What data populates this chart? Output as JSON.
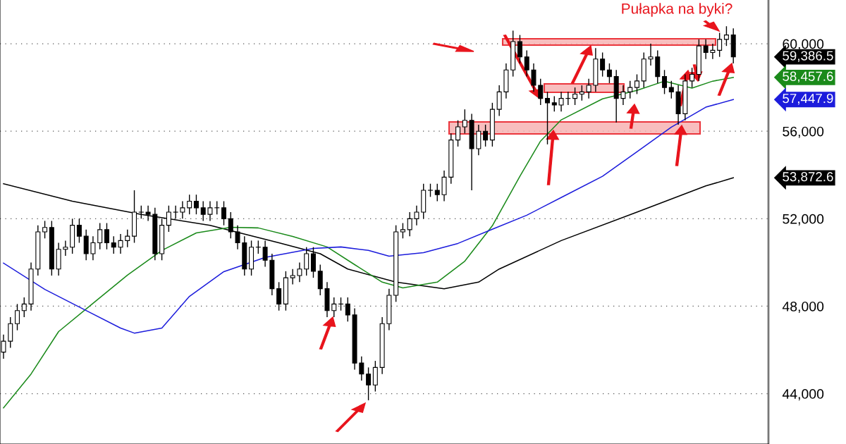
{
  "chart_data": {
    "type": "candlestick",
    "categories": [
      null,
      null,
      null,
      null,
      null,
      null,
      null,
      null,
      null,
      null,
      null,
      null,
      null,
      null,
      null,
      null,
      null,
      null,
      null,
      null,
      null,
      null,
      null,
      null,
      null,
      null,
      null,
      null,
      null,
      null,
      null,
      null,
      null,
      null,
      null,
      null,
      null,
      null,
      null,
      null,
      null,
      null,
      null,
      null,
      null,
      null,
      null,
      null,
      null,
      null,
      null,
      null,
      null,
      null,
      null,
      null,
      null,
      null,
      null,
      null,
      null,
      null,
      null,
      null,
      null,
      null,
      null,
      null,
      null,
      null,
      null,
      null,
      null,
      null,
      null,
      null,
      null,
      null,
      null,
      null,
      null,
      null,
      null,
      null,
      null,
      null,
      null,
      null,
      null,
      null,
      null,
      null,
      null,
      null,
      null,
      null,
      null,
      null,
      null,
      null,
      null,
      null,
      null,
      null,
      null,
      null,
      null
    ],
    "ohlc": [
      [
        45900,
        46700,
        45600,
        46400
      ],
      [
        46400,
        47500,
        46100,
        47200
      ],
      [
        47200,
        48100,
        46900,
        47800
      ],
      [
        47800,
        48400,
        47500,
        48100
      ],
      [
        48100,
        50000,
        47800,
        49700
      ],
      [
        49700,
        51700,
        49400,
        51400
      ],
      [
        51400,
        51900,
        51100,
        51600
      ],
      [
        51600,
        51900,
        49400,
        49700
      ],
      [
        49700,
        50900,
        49400,
        50600
      ],
      [
        50600,
        51000,
        50300,
        50700
      ],
      [
        50700,
        52000,
        50400,
        51700
      ],
      [
        51700,
        52000,
        50900,
        51200
      ],
      [
        51200,
        51500,
        50100,
        50400
      ],
      [
        50400,
        51200,
        50100,
        50900
      ],
      [
        50900,
        51800,
        50600,
        51500
      ],
      [
        51500,
        51800,
        50600,
        50900
      ],
      [
        50900,
        51200,
        50400,
        50700
      ],
      [
        50700,
        51300,
        50400,
        51000
      ],
      [
        51000,
        51500,
        50700,
        51200
      ],
      [
        51200,
        53300,
        50900,
        52300
      ],
      [
        52300,
        52600,
        52000,
        52300
      ],
      [
        52300,
        52600,
        51900,
        52200
      ],
      [
        52200,
        52500,
        50100,
        50400
      ],
      [
        50400,
        52000,
        50100,
        51700
      ],
      [
        51700,
        52600,
        51400,
        52300
      ],
      [
        52300,
        52600,
        52000,
        52300
      ],
      [
        52300,
        52800,
        52000,
        52500
      ],
      [
        52500,
        53100,
        52200,
        52800
      ],
      [
        52800,
        53100,
        52200,
        52500
      ],
      [
        52500,
        52800,
        51900,
        52200
      ],
      [
        52200,
        52800,
        51900,
        52500
      ],
      [
        52500,
        52800,
        52200,
        52500
      ],
      [
        52500,
        52800,
        51700,
        52000
      ],
      [
        52000,
        52300,
        51100,
        51400
      ],
      [
        51400,
        51700,
        50600,
        50900
      ],
      [
        50900,
        51200,
        49400,
        49700
      ],
      [
        49700,
        51000,
        49400,
        50700
      ],
      [
        50700,
        51000,
        50400,
        50700
      ],
      [
        50700,
        51000,
        49800,
        50100
      ],
      [
        50100,
        50400,
        48500,
        48800
      ],
      [
        48800,
        49100,
        47800,
        48100
      ],
      [
        48100,
        49600,
        47800,
        49300
      ],
      [
        49300,
        49700,
        49000,
        49400
      ],
      [
        49400,
        50000,
        49100,
        49700
      ],
      [
        49700,
        50700,
        49400,
        50400
      ],
      [
        50400,
        50700,
        49300,
        49600
      ],
      [
        49600,
        49900,
        48500,
        48800
      ],
      [
        48800,
        49100,
        47500,
        47800
      ],
      [
        47800,
        48400,
        47500,
        48100
      ],
      [
        48100,
        48400,
        47800,
        48100
      ],
      [
        48100,
        48400,
        47300,
        47600
      ],
      [
        47600,
        47900,
        45100,
        45400
      ],
      [
        45400,
        45700,
        44600,
        44900
      ],
      [
        44900,
        45200,
        43700,
        44400
      ],
      [
        44400,
        45500,
        44100,
        45200
      ],
      [
        45200,
        47500,
        44900,
        47200
      ],
      [
        47200,
        48800,
        46900,
        48500
      ],
      [
        48500,
        51700,
        48200,
        51400
      ],
      [
        51400,
        51800,
        51100,
        51500
      ],
      [
        51500,
        52300,
        51200,
        52000
      ],
      [
        52000,
        52600,
        51700,
        52300
      ],
      [
        52300,
        53600,
        52000,
        53300
      ],
      [
        53300,
        53600,
        53000,
        53300
      ],
      [
        53300,
        53600,
        52800,
        53100
      ],
      [
        53100,
        54200,
        52800,
        53900
      ],
      [
        53900,
        55900,
        53600,
        55600
      ],
      [
        55600,
        56500,
        55300,
        56200
      ],
      [
        56200,
        57000,
        55900,
        56500
      ],
      [
        56500,
        56800,
        53300,
        55200
      ],
      [
        55200,
        56300,
        54900,
        56000
      ],
      [
        56000,
        56300,
        55300,
        55600
      ],
      [
        55600,
        57300,
        55300,
        57000
      ],
      [
        57000,
        58100,
        56700,
        57800
      ],
      [
        57800,
        59100,
        57500,
        58800
      ],
      [
        58800,
        60600,
        58500,
        60100
      ],
      [
        60100,
        60400,
        59100,
        59400
      ],
      [
        59400,
        59700,
        58500,
        58800
      ],
      [
        58800,
        59100,
        57800,
        58100
      ],
      [
        58100,
        58400,
        57200,
        57500
      ],
      [
        57500,
        57800,
        55400,
        57300
      ],
      [
        57300,
        57600,
        56900,
        57200
      ],
      [
        57200,
        57800,
        56900,
        57500
      ],
      [
        57500,
        57800,
        57200,
        57500
      ],
      [
        57500,
        58000,
        57200,
        57700
      ],
      [
        57700,
        58100,
        57400,
        57800
      ],
      [
        57800,
        58400,
        57500,
        58100
      ],
      [
        58100,
        59800,
        57800,
        59300
      ],
      [
        59300,
        59600,
        58500,
        58800
      ],
      [
        58800,
        59100,
        58200,
        58500
      ],
      [
        58500,
        58800,
        56400,
        57500
      ],
      [
        57500,
        58100,
        57200,
        57800
      ],
      [
        57800,
        58300,
        57500,
        58000
      ],
      [
        58000,
        58600,
        57700,
        58300
      ],
      [
        58300,
        59600,
        58000,
        59300
      ],
      [
        59300,
        60000,
        59000,
        59400
      ],
      [
        59400,
        59700,
        58200,
        58500
      ],
      [
        58500,
        58800,
        57700,
        58000
      ],
      [
        58000,
        58300,
        57500,
        57800
      ],
      [
        57800,
        58100,
        56300,
        56800
      ],
      [
        56800,
        58600,
        56500,
        58300
      ],
      [
        58300,
        58900,
        58000,
        58600
      ],
      [
        58600,
        60200,
        58300,
        59900
      ],
      [
        59900,
        60200,
        59300,
        59600
      ],
      [
        59600,
        60000,
        59300,
        59700
      ],
      [
        59700,
        60500,
        59400,
        60200
      ],
      [
        60200,
        60800,
        59900,
        60400
      ],
      [
        60400,
        60700,
        59100,
        59400
      ]
    ],
    "series": [
      {
        "type": "line",
        "color": "#000000",
        "values": [
          53600,
          null,
          null,
          null,
          null,
          null,
          null,
          null,
          null,
          null,
          52800,
          null,
          null,
          null,
          null,
          null,
          null,
          null,
          null,
          null,
          52200,
          null,
          null,
          null,
          null,
          null,
          null,
          null,
          null,
          null,
          51700,
          null,
          null,
          null,
          null,
          null,
          null,
          null,
          null,
          null,
          50900,
          null,
          null,
          null,
          null,
          null,
          50400,
          null,
          null,
          null,
          49700,
          null,
          null,
          null,
          null,
          null,
          null,
          49100,
          null,
          null,
          null,
          null,
          null,
          null,
          48800,
          null,
          null,
          null,
          null,
          49100,
          null,
          null,
          49700,
          null,
          null,
          null,
          null,
          null,
          null,
          null,
          null,
          51000,
          null,
          null,
          null,
          null,
          null,
          null,
          null,
          null,
          null,
          null,
          52300,
          null,
          null,
          null,
          null,
          null,
          null,
          null,
          null,
          null,
          53500,
          null,
          null,
          null,
          53870
        ]
      },
      {
        "type": "line",
        "color": "#1a8a1a",
        "values": [
          43350,
          null,
          null,
          null,
          44900,
          null,
          null,
          null,
          46840,
          null,
          null,
          null,
          null,
          48130,
          null,
          null,
          null,
          null,
          49420,
          null,
          null,
          null,
          null,
          50550,
          null,
          null,
          null,
          null,
          51350,
          null,
          null,
          null,
          null,
          51610,
          null,
          null,
          null,
          51580,
          null,
          null,
          null,
          null,
          51190,
          null,
          null,
          null,
          null,
          50710,
          null,
          null,
          null,
          49900,
          null,
          null,
          null,
          49100,
          null,
          null,
          48840,
          null,
          null,
          null,
          null,
          49100,
          null,
          null,
          null,
          50060,
          null,
          null,
          null,
          51680,
          null,
          null,
          null,
          53940,
          null,
          null,
          55550,
          null,
          null,
          56520,
          null,
          null,
          null,
          null,
          null,
          57480,
          null,
          null,
          null,
          null,
          57870,
          null,
          null,
          null,
          58290,
          null,
          null,
          null,
          57970,
          null,
          null,
          58290,
          null,
          null,
          58460
        ]
      },
      {
        "type": "line",
        "color": "#1c1cdc",
        "values": [
          49970,
          null,
          null,
          null,
          null,
          null,
          48770,
          null,
          null,
          null,
          null,
          null,
          47800,
          null,
          null,
          null,
          null,
          47000,
          null,
          46770,
          null,
          null,
          null,
          47000,
          null,
          null,
          null,
          48450,
          null,
          null,
          null,
          null,
          49580,
          null,
          null,
          null,
          null,
          null,
          50230,
          null,
          null,
          null,
          null,
          null,
          null,
          50640,
          null,
          null,
          null,
          50710,
          null,
          null,
          null,
          50550,
          null,
          null,
          50290,
          null,
          null,
          null,
          null,
          50450,
          null,
          null,
          null,
          null,
          50870,
          null,
          null,
          null,
          null,
          51520,
          null,
          null,
          null,
          null,
          52160,
          null,
          null,
          null,
          null,
          52970,
          null,
          null,
          null,
          null,
          null,
          53940,
          null,
          null,
          null,
          null,
          55060,
          null,
          null,
          null,
          null,
          56190,
          null,
          null,
          null,
          null,
          57100,
          null,
          null,
          null,
          57450
        ]
      }
    ],
    "ylim": [
      41700,
      62000
    ],
    "yticks": [
      {
        "value": 44000,
        "label": "44,000"
      },
      {
        "value": 48000,
        "label": "48,000"
      },
      {
        "value": 52000,
        "label": "52,000"
      },
      {
        "value": 56000,
        "label": "56,000"
      },
      {
        "value": 60000,
        "label": "60,000"
      }
    ],
    "grid": "y",
    "legend": false,
    "annotations": [
      "Pułapka na byki?",
      "59,386.5",
      "58,457.6",
      "57,447.9",
      "53,872.6"
    ]
  }
}
